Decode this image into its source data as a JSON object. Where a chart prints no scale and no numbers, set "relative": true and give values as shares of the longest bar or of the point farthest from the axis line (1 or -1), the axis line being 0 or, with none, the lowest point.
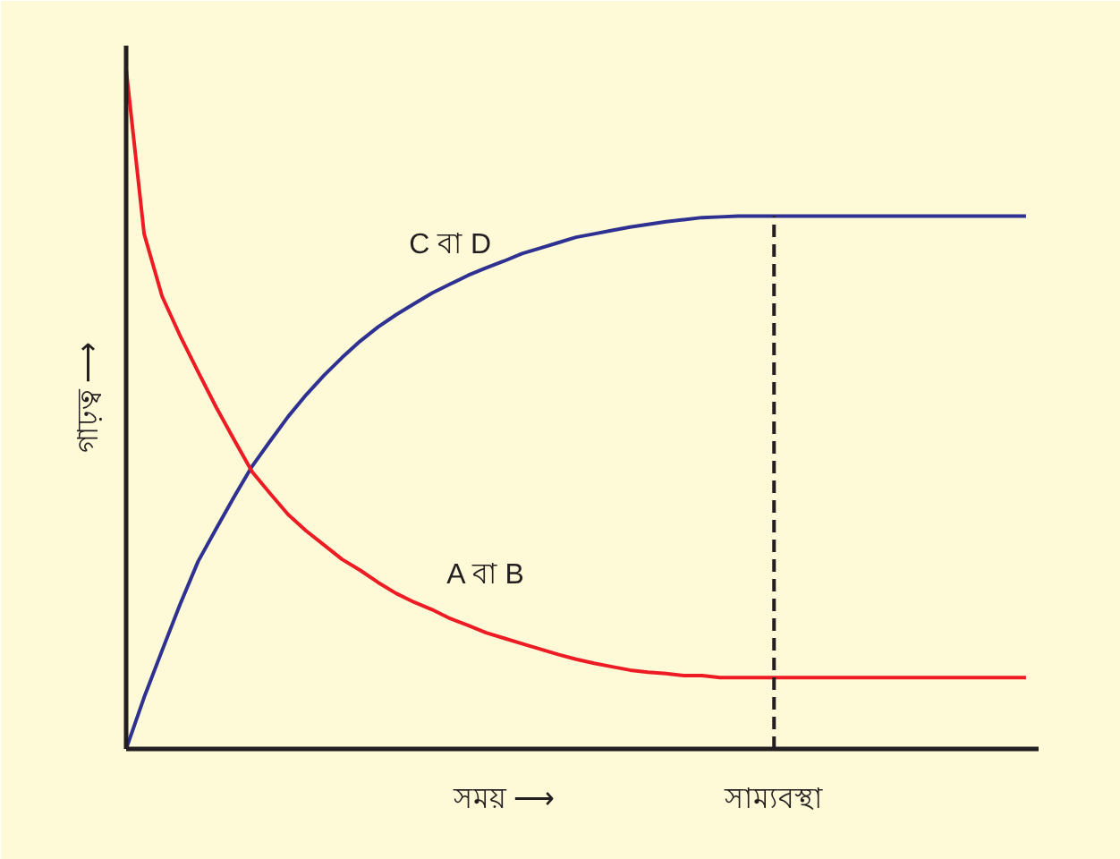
{
  "chart_data": {
    "type": "line",
    "relative": true,
    "xlabel": "সময় ⟶",
    "ylabel": "গাঢ়ত্ব ⟶",
    "categories": [
      null,
      null,
      null,
      null,
      null,
      null,
      null,
      null,
      null,
      null,
      null,
      null,
      null,
      null,
      null,
      null,
      null,
      null,
      null,
      null,
      null,
      null,
      null,
      null,
      null,
      null,
      null,
      null,
      null,
      null,
      null,
      null,
      null,
      null,
      null,
      null,
      null,
      null,
      null,
      null,
      null,
      null,
      null,
      null,
      null,
      null,
      null,
      null,
      null,
      null,
      null
    ],
    "series": [
      {
        "name": "C বা D",
        "color": "#2e3192",
        "values": [
          0,
          0.076,
          0.145,
          0.213,
          0.276,
          0.324,
          0.371,
          0.416,
          0.453,
          0.489,
          0.521,
          0.55,
          0.576,
          0.6,
          0.621,
          0.639,
          0.655,
          0.671,
          0.684,
          0.697,
          0.708,
          0.718,
          0.729,
          0.737,
          0.745,
          0.753,
          0.758,
          0.763,
          0.768,
          0.772,
          0.776,
          0.779,
          0.782,
          0.783,
          0.784,
          0.784,
          0.784,
          0.784,
          0.784,
          0.784,
          0.784,
          0.784,
          0.784,
          0.784,
          0.784,
          0.784,
          0.784,
          0.784,
          0.784,
          0.784,
          0.784
        ]
      },
      {
        "name": "A বা B",
        "color": "#ed1c24",
        "values": [
          1.0,
          0.758,
          0.666,
          0.608,
          0.555,
          0.503,
          0.455,
          0.408,
          0.376,
          0.345,
          0.321,
          0.3,
          0.279,
          0.263,
          0.245,
          0.229,
          0.216,
          0.205,
          0.192,
          0.182,
          0.171,
          0.163,
          0.155,
          0.147,
          0.139,
          0.132,
          0.126,
          0.121,
          0.116,
          0.113,
          0.111,
          0.108,
          0.108,
          0.105,
          0.105,
          0.105,
          0.105,
          0.105,
          0.105,
          0.105,
          0.105,
          0.105,
          0.105,
          0.105,
          0.105,
          0.105,
          0.105,
          0.105,
          0.105,
          0.105,
          0.105
        ]
      }
    ],
    "annotations": [
      "সাম্যবস্থা"
    ]
  }
}
